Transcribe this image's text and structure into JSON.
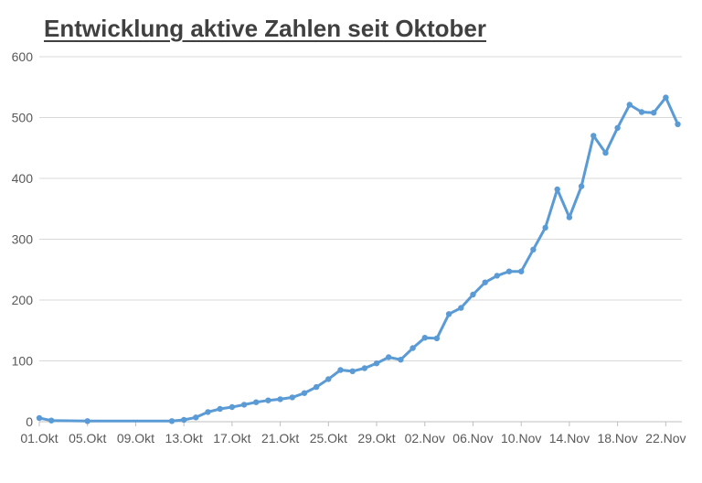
{
  "chart_data": {
    "type": "line",
    "title": "Entwicklung aktive Zahlen seit Oktober",
    "xlabel": "",
    "ylabel": "",
    "ylim": [
      0,
      600
    ],
    "yticks": [
      0,
      100,
      200,
      300,
      400,
      500,
      600
    ],
    "xticks": [
      "01.Okt",
      "05.Okt",
      "09.Okt",
      "13.Okt",
      "17.Okt",
      "21.Okt",
      "25.Okt",
      "29.Okt",
      "02.Nov",
      "06.Nov",
      "10.Nov",
      "14.Nov",
      "18.Nov",
      "22.Nov"
    ],
    "grid": true,
    "legend": "none",
    "line_color": "#5b9bd5",
    "series": [
      {
        "points": [
          [
            "01.Okt",
            6
          ],
          [
            "02.Okt",
            2
          ],
          [
            "05.Okt",
            1
          ],
          [
            "12.Okt",
            1
          ],
          [
            "13.Okt",
            3
          ],
          [
            "14.Okt",
            7
          ],
          [
            "15.Okt",
            16
          ],
          [
            "16.Okt",
            21
          ],
          [
            "17.Okt",
            24
          ],
          [
            "18.Okt",
            28
          ],
          [
            "19.Okt",
            32
          ],
          [
            "20.Okt",
            35
          ],
          [
            "21.Okt",
            37
          ],
          [
            "22.Okt",
            40
          ],
          [
            "23.Okt",
            47
          ],
          [
            "24.Okt",
            57
          ],
          [
            "25.Okt",
            70
          ],
          [
            "26.Okt",
            85
          ],
          [
            "27.Okt",
            83
          ],
          [
            "28.Okt",
            88
          ],
          [
            "29.Okt",
            96
          ],
          [
            "30.Okt",
            106
          ],
          [
            "31.Okt",
            102
          ],
          [
            "01.Nov",
            121
          ],
          [
            "02.Nov",
            138
          ],
          [
            "03.Nov",
            137
          ],
          [
            "04.Nov",
            177
          ],
          [
            "05.Nov",
            187
          ],
          [
            "06.Nov",
            209
          ],
          [
            "07.Nov",
            229
          ],
          [
            "08.Nov",
            240
          ],
          [
            "09.Nov",
            247
          ],
          [
            "10.Nov",
            247
          ],
          [
            "11.Nov",
            283
          ],
          [
            "12.Nov",
            319
          ],
          [
            "13.Nov",
            382
          ],
          [
            "14.Nov",
            336
          ],
          [
            "15.Nov",
            387
          ],
          [
            "16.Nov",
            470
          ],
          [
            "17.Nov",
            442
          ],
          [
            "18.Nov",
            483
          ],
          [
            "19.Nov",
            521
          ],
          [
            "20.Nov",
            509
          ],
          [
            "21.Nov",
            508
          ],
          [
            "22.Nov",
            533
          ],
          [
            "23.Nov",
            489
          ]
        ]
      }
    ]
  }
}
